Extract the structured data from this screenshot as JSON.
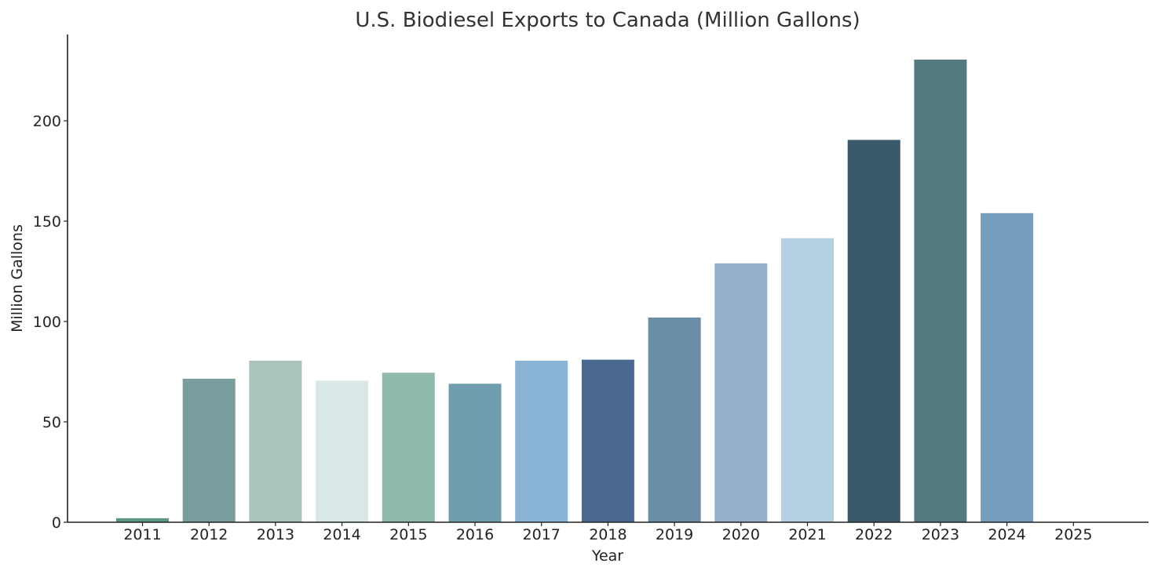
{
  "chart_data": {
    "type": "bar",
    "title": "U.S. Biodiesel Exports to Canada (Million Gallons)",
    "xlabel": "Year",
    "ylabel": "Million Gallons",
    "categories": [
      "2011",
      "2012",
      "2013",
      "2014",
      "2015",
      "2016",
      "2017",
      "2018",
      "2019",
      "2020",
      "2021",
      "2022",
      "2023",
      "2024",
      "2025"
    ],
    "values": [
      2,
      71.5,
      80.5,
      70.5,
      74.5,
      69,
      80.5,
      81,
      102,
      129,
      141.5,
      190.5,
      230.5,
      154,
      0
    ],
    "colors": [
      "#5d9686",
      "#789e9e",
      "#a8c4bb",
      "#d9e7e7",
      "#8fb9a9",
      "#6f9eae",
      "#89b4d6",
      "#4a6990",
      "#6a8ea6",
      "#95afcb",
      "#b4d2e3",
      "#3a596a",
      "#527a80",
      "#779ebe",
      "#ffffff"
    ],
    "ylim": [
      0,
      243
    ],
    "yticks": [
      0,
      50,
      100,
      150,
      200
    ],
    "grid": false,
    "legend": "none"
  }
}
